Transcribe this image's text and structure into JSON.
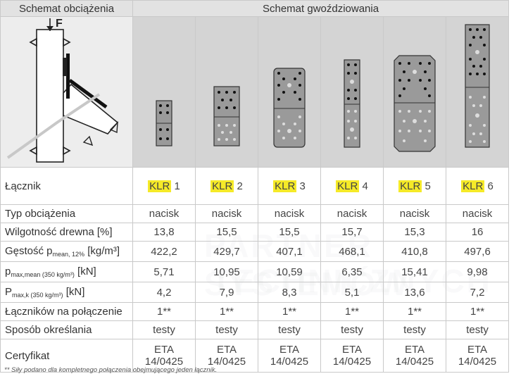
{
  "header": {
    "left": "Schemat obciążenia",
    "right": "Schemat gwoździowania"
  },
  "diagram": {
    "force_label": "F"
  },
  "rows": {
    "connector_label": "Łącznik",
    "connector_prefix": "KLR",
    "connector_numbers": [
      "1",
      "2",
      "3",
      "4",
      "5",
      "6"
    ],
    "load_type_label": "Typ obciążenia",
    "load_type": [
      "nacisk",
      "nacisk",
      "nacisk",
      "nacisk",
      "nacisk",
      "nacisk"
    ],
    "moisture_label": "Wilgotność drewna [%]",
    "moisture": [
      "13,8",
      "15,5",
      "15,5",
      "15,7",
      "15,3",
      "16"
    ],
    "density_label_main": "Gęstość p",
    "density_label_sub": "mean, 12%",
    "density_label_unit": " [kg/m³]",
    "density": [
      "422,2",
      "429,7",
      "407,1",
      "468,1",
      "410,8",
      "497,6"
    ],
    "pmean_label_main": "p",
    "pmean_label_sub": "max,mean (350 kg/m³)",
    "pmean_label_unit": " [kN]",
    "pmean": [
      "5,71",
      "10,95",
      "10,59",
      "6,35",
      "15,41",
      "9,98"
    ],
    "pk_label_main": "P",
    "pk_label_sub": "max,k (350 kg/m³)",
    "pk_label_unit": " [kN]",
    "pk": [
      "4,2",
      "7,9",
      "8,3",
      "5,1",
      "13,6",
      "7,2"
    ],
    "fasteners_label": "Łączników na połączenie",
    "fasteners": [
      "1**",
      "1**",
      "1**",
      "1**",
      "1**",
      "1**"
    ],
    "method_label": "Sposób określania",
    "method": [
      "testy",
      "testy",
      "testy",
      "testy",
      "testy",
      "testy"
    ],
    "cert_label": "Certyfikat",
    "cert_line1": [
      "ETA",
      "ETA",
      "ETA",
      "ETA",
      "ETA",
      "ETA"
    ],
    "cert_line2": [
      "14/0425",
      "14/0425",
      "14/0425",
      "14/0425",
      "14/0425",
      "14/0425"
    ]
  },
  "footnote": "** Siły podano dla kompletnego połączenia obejmującego jeden łącznik.",
  "watermark": {
    "big": "PST",
    "line1": "PARTNER SYSTEMÓW",
    "line2": "TECHNICZNYCH"
  },
  "colors": {
    "highlight": "#f5ea28",
    "header_bg": "#e2e2e2",
    "image_bg": "#d4d4d4"
  }
}
